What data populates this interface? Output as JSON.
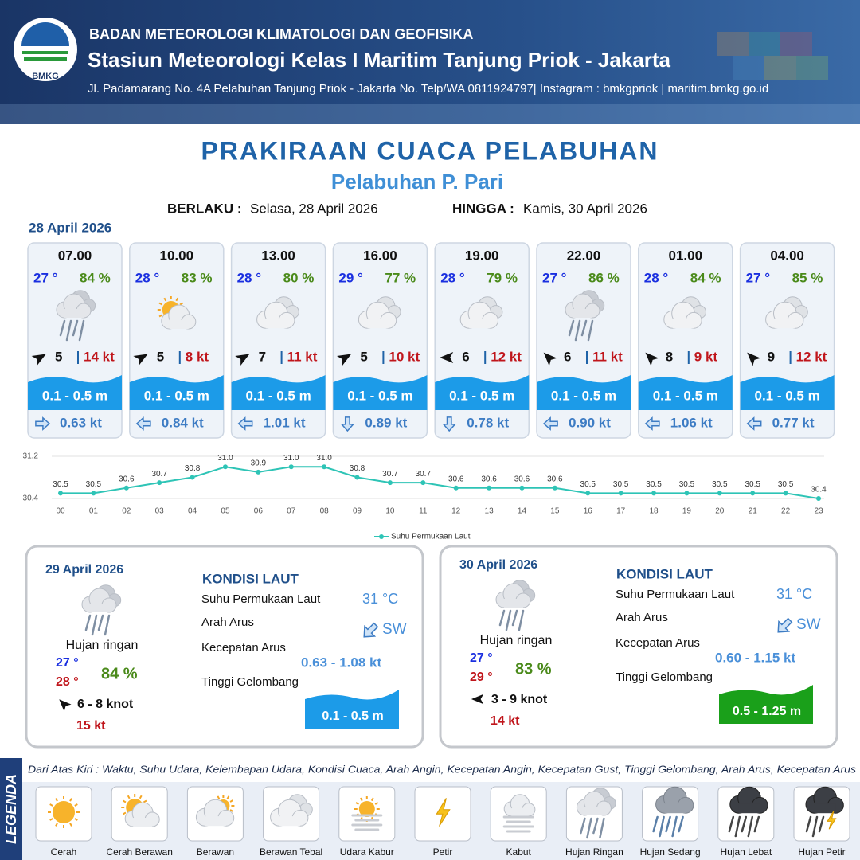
{
  "header": {
    "logo": "BMKG",
    "organization": "BADAN METEOROLOGI KLIMATOLOGI DAN GEOFISIKA",
    "station": "Stasiun Meteorologi Kelas I Maritim Tanjung Priok - Jakarta",
    "address": "Jl. Padamarang No. 4A Pelabuhan Tanjung Priok - Jakarta No. Telp/WA 0811924797| Instagram : bmkgpriok | maritim.bmkg.go.id"
  },
  "title": "PRAKIRAAN CUACA PELABUHAN",
  "subtitle": "Pelabuhan P. Pari",
  "validity": {
    "from_label": "BERLAKU :",
    "from": "Selasa, 28 April 2026",
    "to_label": "HINGGA :",
    "to": "Kamis, 30 April 2026"
  },
  "day1_date": "28 April 2026",
  "forecasts": [
    {
      "time": "07.00",
      "temp": "27 °",
      "humidity": "84 %",
      "condition": "Hujan Ringan",
      "wind_dir": 60,
      "wind": "5",
      "gust": "14 kt",
      "wave": "0.1 - 0.5 m",
      "current_dir": 90,
      "current": "0.63 kt"
    },
    {
      "time": "10.00",
      "temp": "28 °",
      "humidity": "83 %",
      "condition": "Cerah Berawan",
      "wind_dir": 60,
      "wind": "5",
      "gust": "8 kt",
      "wave": "0.1 - 0.5 m",
      "current_dir": 270,
      "current": "0.84 kt"
    },
    {
      "time": "13.00",
      "temp": "28 °",
      "humidity": "80 %",
      "condition": "Berawan Tebal",
      "wind_dir": 60,
      "wind": "7",
      "gust": "11 kt",
      "wave": "0.1 - 0.5 m",
      "current_dir": 270,
      "current": "1.01 kt"
    },
    {
      "time": "16.00",
      "temp": "29 °",
      "humidity": "77 %",
      "condition": "Berawan Tebal",
      "wind_dir": 60,
      "wind": "5",
      "gust": "10 kt",
      "wave": "0.1 - 0.5 m",
      "current_dir": 180,
      "current": "0.89 kt"
    },
    {
      "time": "19.00",
      "temp": "28 °",
      "humidity": "79 %",
      "condition": "Berawan Tebal",
      "wind_dir": 270,
      "wind": "6",
      "gust": "12 kt",
      "wave": "0.1 - 0.5 m",
      "current_dir": 180,
      "current": "0.78 kt"
    },
    {
      "time": "22.00",
      "temp": "27 °",
      "humidity": "86 %",
      "condition": "Hujan Ringan",
      "wind_dir": 315,
      "wind": "6",
      "gust": "11 kt",
      "wave": "0.1 - 0.5 m",
      "current_dir": 270,
      "current": "0.90 kt"
    },
    {
      "time": "01.00",
      "temp": "28 °",
      "humidity": "84 %",
      "condition": "Berawan Tebal",
      "wind_dir": 315,
      "wind": "8",
      "gust": "9 kt",
      "wave": "0.1 - 0.5 m",
      "current_dir": 270,
      "current": "1.06 kt"
    },
    {
      "time": "04.00",
      "temp": "27 °",
      "humidity": "85 %",
      "condition": "Berawan Tebal",
      "wind_dir": 315,
      "wind": "9",
      "gust": "12 kt",
      "wave": "0.1 - 0.5 m",
      "current_dir": 270,
      "current": "0.77 kt"
    }
  ],
  "chart_data": {
    "type": "line",
    "categories": [
      "00",
      "01",
      "02",
      "03",
      "04",
      "05",
      "06",
      "07",
      "08",
      "09",
      "10",
      "11",
      "12",
      "13",
      "14",
      "15",
      "16",
      "17",
      "18",
      "19",
      "20",
      "21",
      "22",
      "23"
    ],
    "series": [
      {
        "name": "Suhu Permukaan Laut",
        "color": "#2ec4b6",
        "values": [
          30.5,
          30.5,
          30.6,
          30.7,
          30.8,
          31.0,
          30.9,
          31.0,
          31.0,
          30.8,
          30.7,
          30.7,
          30.6,
          30.6,
          30.6,
          30.6,
          30.5,
          30.5,
          30.5,
          30.5,
          30.5,
          30.5,
          30.5,
          30.4
        ],
        "value_labels": [
          "30.5",
          "30.5",
          "30.6",
          "30.7",
          "30.8",
          "31.0",
          "30.9",
          "31.0",
          "31.0",
          "30.8",
          "30.7",
          "30.7",
          "30.6",
          "30.6",
          "30.6",
          "30.6",
          "30.5",
          "30.5",
          "30.5",
          "30.5",
          "30.5",
          "30.5",
          "30.5",
          "30.4"
        ]
      }
    ],
    "ylim": [
      30.4,
      31.2
    ],
    "yticks": [
      30.4,
      31.2
    ],
    "grid": true
  },
  "days": [
    {
      "date": "29 April 2026",
      "condition": "Hujan ringan",
      "temp_min": "27 °",
      "temp_max": "28 °",
      "humidity": "84 %",
      "wind_dir": 315,
      "wind": "6 - 8 knot",
      "gust": "15 kt",
      "sea_heading": "KONDISI LAUT",
      "sst_label": "Suhu Permukaan Laut",
      "sst": "31 °C",
      "current_dir_label": "Arah Arus",
      "current_dir_deg": 225,
      "current_dir": "SW",
      "current_speed_label": "Kecepatan Arus",
      "current_speed": "0.63 - 1.08 kt",
      "wave_label": "Tinggi Gelombang",
      "wave": "0.1 - 0.5 m",
      "wave_color": "#1c9be8"
    },
    {
      "date": "30 April 2026",
      "condition": "Hujan ringan",
      "temp_min": "27 °",
      "temp_max": "29 °",
      "humidity": "83 %",
      "wind_dir": 270,
      "wind": "3 - 9 knot",
      "gust": "14 kt",
      "sea_heading": "KONDISI LAUT",
      "sst_label": "Suhu Permukaan Laut",
      "sst": "31 °C",
      "current_dir_label": "Arah Arus",
      "current_dir_deg": 225,
      "current_dir": "SW",
      "current_speed_label": "Kecepatan Arus",
      "current_speed": "0.60 - 1.15 kt",
      "wave_label": "Tinggi Gelombang",
      "wave": "0.5 - 1.25 m",
      "wave_color": "#1aa01a"
    }
  ],
  "legend": {
    "title": "LEGENDA",
    "description": "Dari Atas Kiri : Waktu, Suhu Udara, Kelembapan Udara, Kondisi Cuaca, Arah Angin, Kecepatan Angin, Kecepatan Gust, Tinggi Gelombang, Arah Arus, Kecepatan Arus",
    "items": [
      "Cerah",
      "Cerah Berawan",
      "Berawan",
      "Berawan Tebal",
      "Udara Kabur",
      "Petir",
      "Kabut",
      "Hujan Ringan",
      "Hujan Sedang",
      "Hujan Lebat",
      "Hujan Petir"
    ]
  }
}
